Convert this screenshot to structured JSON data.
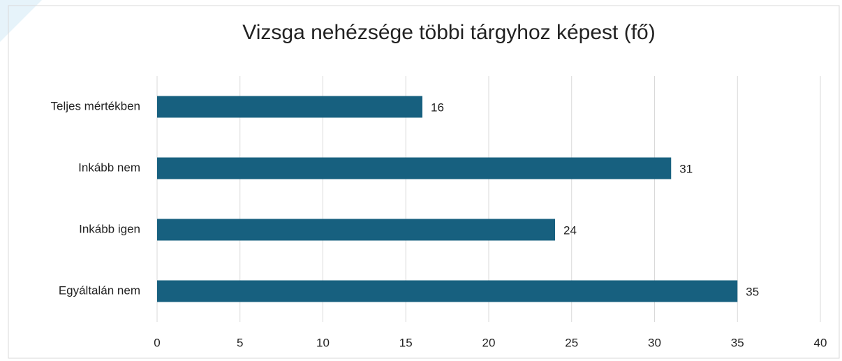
{
  "chart_data": {
    "type": "bar",
    "orientation": "horizontal",
    "title": "Vizsga nehézsége többi tárgyhoz képest (fő)",
    "categories": [
      "Teljes mértékben",
      "Inkább nem",
      "Inkább igen",
      "Egyáltalán nem"
    ],
    "values": [
      16,
      31,
      24,
      35
    ],
    "color": "#17607f",
    "xlim": [
      0,
      40
    ],
    "xticks": [
      0,
      5,
      10,
      15,
      20,
      25,
      30,
      35,
      40
    ],
    "grid": true
  }
}
